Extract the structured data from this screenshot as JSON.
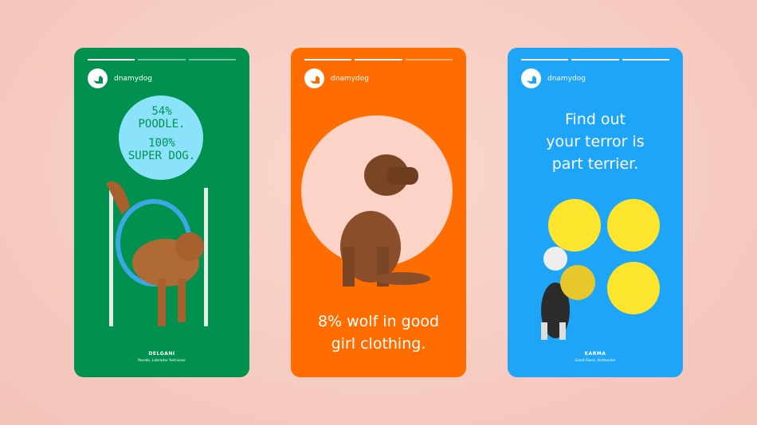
{
  "colors": {
    "green": "#00914f",
    "orange": "#ff6d00",
    "blue": "#1ea5f7",
    "background": "#f7cfc6"
  },
  "cards": [
    {
      "brand": "dnamydog",
      "headline_line1": "54%",
      "headline_line2": "POODLE.",
      "headline_line3": "100%",
      "headline_line4": "SUPER DOG.",
      "dog_name": "DELGANI",
      "breeds": "Poodle, Labrador Retriever"
    },
    {
      "brand": "dnamydog",
      "headline_line1": "8% wolf in good",
      "headline_line2": "girl clothing."
    },
    {
      "brand": "dnamydog",
      "headline_line1": "Find out",
      "headline_line2": "your terror is",
      "headline_line3": "part terrier.",
      "dog_name": "KARMA",
      "breeds": "Great Dane, Rottweiler"
    }
  ]
}
